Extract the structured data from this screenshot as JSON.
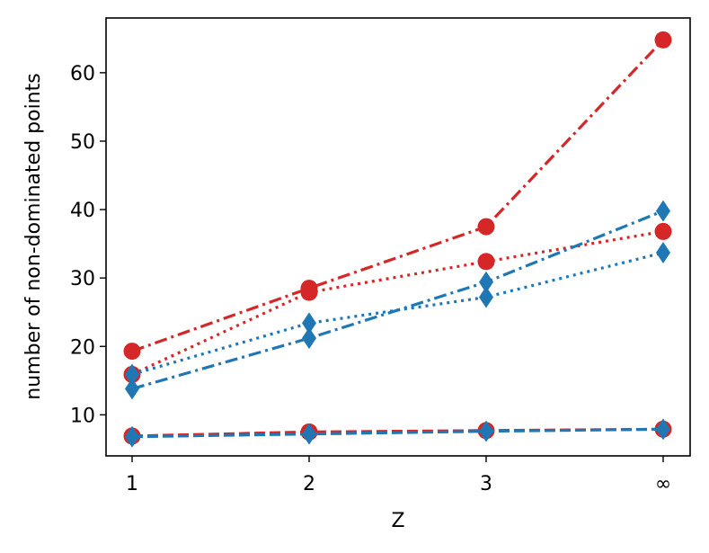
{
  "chart_data": {
    "type": "line",
    "xlabel": "Z",
    "ylabel": "number of non-dominated points",
    "categories": [
      "1",
      "2",
      "3",
      "∞"
    ],
    "ylim": [
      4,
      68
    ],
    "yticks": [
      10,
      20,
      30,
      40,
      50,
      60
    ],
    "grid": false,
    "series": [
      {
        "color": "#d62728",
        "marker": "circle",
        "linestyle": "dashdot",
        "values": [
          19.3,
          28.5,
          37.5,
          64.8
        ]
      },
      {
        "color": "#d62728",
        "marker": "circle",
        "linestyle": "dotted",
        "values": [
          15.9,
          27.9,
          32.4,
          36.8
        ]
      },
      {
        "color": "#d62728",
        "marker": "circle",
        "linestyle": "dashed",
        "values": [
          6.9,
          7.5,
          7.7,
          7.9
        ]
      },
      {
        "color": "#1f77b4",
        "marker": "diamond",
        "linestyle": "dashdot",
        "values": [
          13.8,
          21.2,
          29.4,
          39.8
        ]
      },
      {
        "color": "#1f77b4",
        "marker": "diamond",
        "linestyle": "dotted",
        "values": [
          15.9,
          23.4,
          27.2,
          33.7
        ]
      },
      {
        "color": "#1f77b4",
        "marker": "diamond",
        "linestyle": "dashed",
        "values": [
          6.8,
          7.2,
          7.6,
          7.9
        ]
      }
    ]
  }
}
